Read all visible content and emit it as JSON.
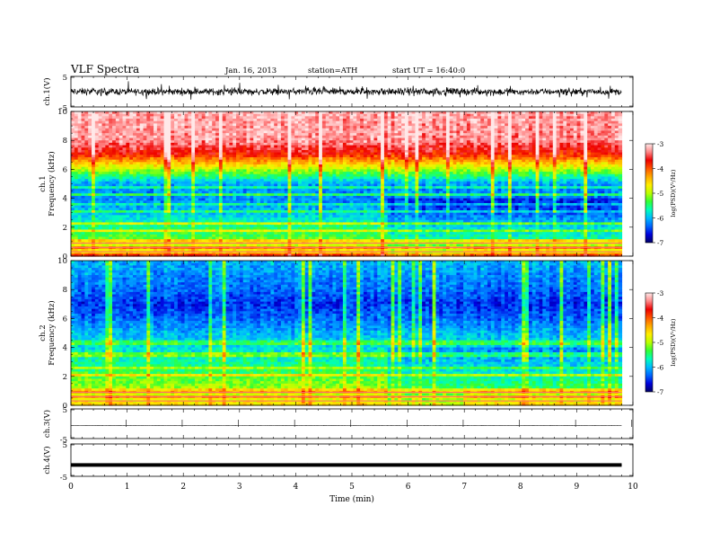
{
  "header": {
    "title": "VLF  Spectra",
    "date": "Jan. 16, 2013",
    "station": "station=ATH",
    "start": "start  UT  =   16:40:0"
  },
  "chart_data": [
    {
      "type": "line",
      "panel": "ch1-waveform",
      "ylabel": "ch.1(V)",
      "ylim": [
        -5,
        5
      ],
      "yticks": [
        "5",
        "-5"
      ],
      "x_range_min": [
        0,
        9.8
      ],
      "mean": 0,
      "noise_amplitude": 1.3
    },
    {
      "type": "heatmap",
      "panel": "ch1-spectrogram",
      "ylabel": "ch.1\nFrequency  (kHz)",
      "ylim": [
        0,
        10
      ],
      "yticks": [
        "0",
        "2",
        "4",
        "6",
        "8",
        "10"
      ],
      "x_range_min": [
        0,
        9.8
      ],
      "colorbar": {
        "label": "log(PSD)(V²/Hz)",
        "range": [
          -7,
          -3
        ],
        "ticks": [
          "-3",
          "-4",
          "-5",
          "-6",
          "-7"
        ]
      },
      "band_level_by_freq_khz": [
        [
          0,
          -4.5
        ],
        [
          0.5,
          -4.6
        ],
        [
          1,
          -5.2
        ],
        [
          2,
          -5.5
        ],
        [
          3,
          -6.0
        ],
        [
          4,
          -6.2
        ],
        [
          5,
          -6.1
        ],
        [
          6,
          -5.0
        ],
        [
          7,
          -3.8
        ],
        [
          8,
          -3.3
        ],
        [
          10,
          -3.2
        ]
      ],
      "spectral_change_at_min": 5.65
    },
    {
      "type": "heatmap",
      "panel": "ch2-spectrogram",
      "ylabel": "ch.2\nFrequency  (kHz)",
      "ylim": [
        0,
        10
      ],
      "yticks": [
        "0",
        "2",
        "4",
        "6",
        "8",
        "10"
      ],
      "x_range_min": [
        0,
        9.8
      ],
      "colorbar": {
        "label": "log(PSD)(V²/Hz)",
        "range": [
          -7,
          -3
        ],
        "ticks": [
          "-3",
          "-4",
          "-5",
          "-6",
          "-7"
        ]
      },
      "band_level_by_freq_khz": [
        [
          0,
          -4.5
        ],
        [
          0.5,
          -4.8
        ],
        [
          1,
          -5.0
        ],
        [
          2,
          -5.3
        ],
        [
          3,
          -5.6
        ],
        [
          4,
          -5.8
        ],
        [
          5,
          -6.0
        ],
        [
          6,
          -6.3
        ],
        [
          7,
          -6.5
        ],
        [
          8,
          -6.3
        ],
        [
          10,
          -6.0
        ]
      ],
      "spectral_change_at_min": 5.65
    },
    {
      "type": "line",
      "panel": "ch3-waveform",
      "ylabel": "ch.3(V)",
      "ylim": [
        -5,
        5
      ],
      "yticks": [
        "5",
        "-5"
      ],
      "x_range_min": [
        0,
        9.8
      ],
      "mean": -0.6,
      "noise_amplitude": 0.05
    },
    {
      "type": "line",
      "panel": "ch4-waveform",
      "ylabel": "ch.4(V)",
      "ylim": [
        -5,
        5
      ],
      "yticks": [
        "5",
        "-5"
      ],
      "x_range_min": [
        0,
        9.8
      ],
      "mean": -1.5,
      "noise_amplitude": 0.25
    }
  ],
  "x_axis": {
    "label": "Time  (min)",
    "range": [
      0,
      10
    ],
    "ticks": [
      "0",
      "1",
      "2",
      "3",
      "4",
      "5",
      "6",
      "7",
      "8",
      "9",
      "10"
    ]
  },
  "colors": {
    "colormap": [
      "#000066",
      "#0000dd",
      "#0066ff",
      "#00bbff",
      "#00ffbb",
      "#33ff33",
      "#bbff00",
      "#ffee00",
      "#ffaa00",
      "#ff5500",
      "#ee0000",
      "#ff8888",
      "#ffe8e8"
    ],
    "axis": "#000000",
    "trace": "#000000"
  }
}
